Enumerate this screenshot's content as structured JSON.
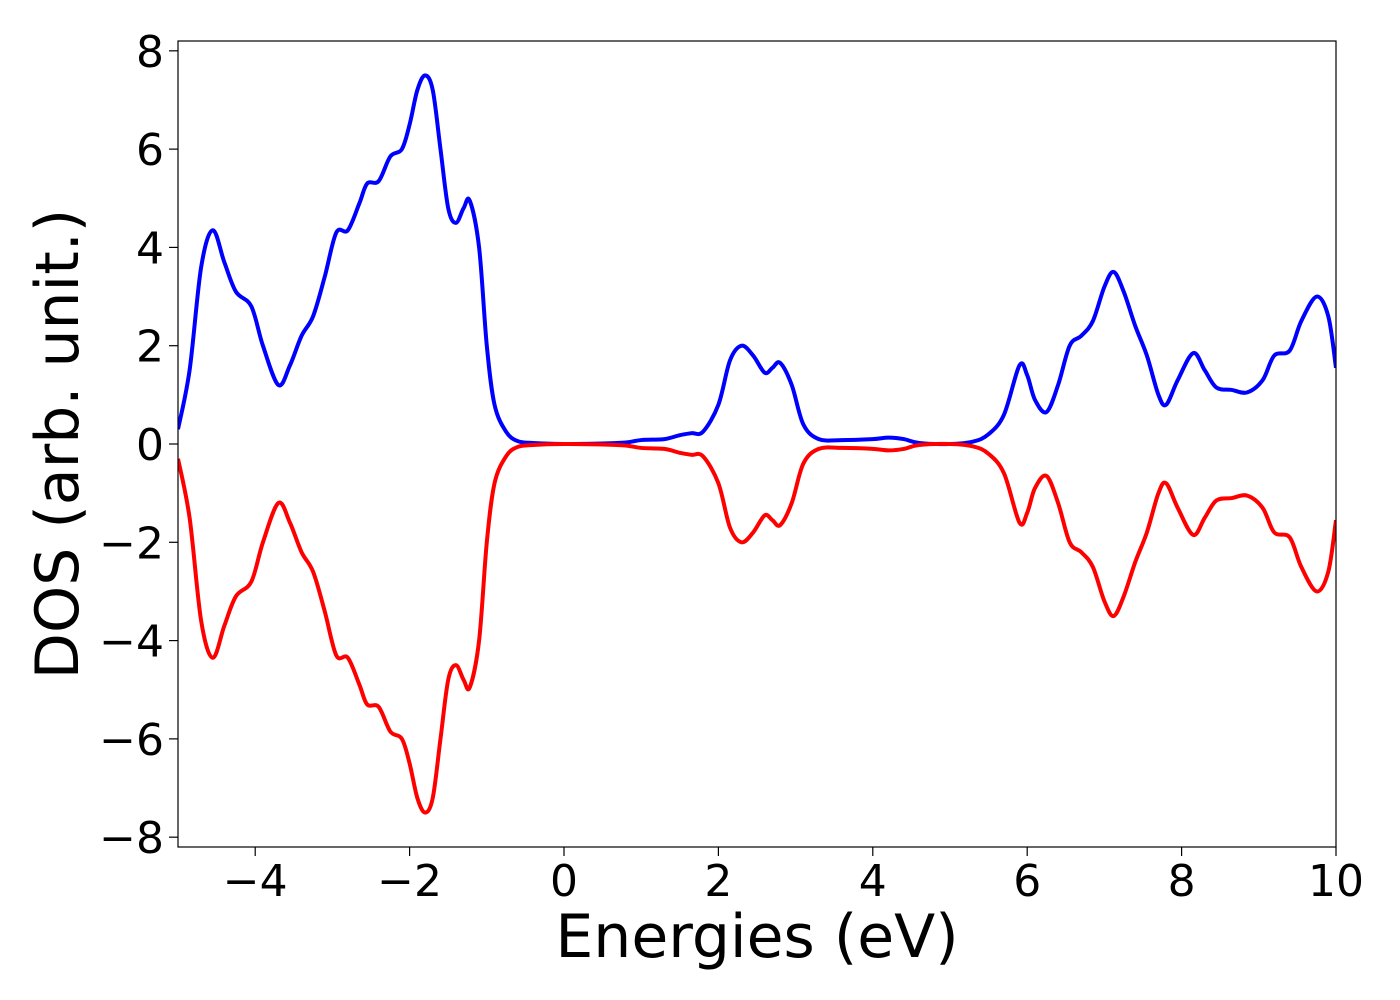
{
  "chart_data": {
    "type": "line",
    "title": "",
    "xlabel": "Energies (eV)",
    "ylabel": "DOS (arb. unit.)",
    "xlim": [
      -5,
      10
    ],
    "ylim": [
      -8.2,
      8.2
    ],
    "xticks": [
      -4,
      -2,
      0,
      2,
      4,
      6,
      8,
      10
    ],
    "xtick_labels": [
      "−4",
      "−2",
      "0",
      "2",
      "4",
      "6",
      "8",
      "10"
    ],
    "yticks": [
      -8,
      -6,
      -4,
      -2,
      0,
      2,
      4,
      6,
      8
    ],
    "ytick_labels": [
      "−8",
      "−6",
      "−4",
      "−2",
      "0",
      "2",
      "4",
      "6",
      "8"
    ],
    "grid": false,
    "legend": "none",
    "series": [
      {
        "color": "#0000ff",
        "points": [
          [
            -5.0,
            0.3
          ],
          [
            -4.85,
            1.5
          ],
          [
            -4.7,
            3.6
          ],
          [
            -4.55,
            4.35
          ],
          [
            -4.4,
            3.7
          ],
          [
            -4.25,
            3.1
          ],
          [
            -4.05,
            2.8
          ],
          [
            -3.9,
            2.0
          ],
          [
            -3.7,
            1.2
          ],
          [
            -3.55,
            1.6
          ],
          [
            -3.4,
            2.2
          ],
          [
            -3.25,
            2.6
          ],
          [
            -3.1,
            3.4
          ],
          [
            -2.95,
            4.3
          ],
          [
            -2.8,
            4.35
          ],
          [
            -2.65,
            4.9
          ],
          [
            -2.55,
            5.3
          ],
          [
            -2.4,
            5.35
          ],
          [
            -2.25,
            5.85
          ],
          [
            -2.1,
            6.0
          ],
          [
            -2.0,
            6.5
          ],
          [
            -1.9,
            7.2
          ],
          [
            -1.8,
            7.5
          ],
          [
            -1.7,
            7.2
          ],
          [
            -1.6,
            6.0
          ],
          [
            -1.5,
            4.8
          ],
          [
            -1.4,
            4.5
          ],
          [
            -1.3,
            4.8
          ],
          [
            -1.22,
            4.95
          ],
          [
            -1.1,
            4.0
          ],
          [
            -1.0,
            2.0
          ],
          [
            -0.9,
            0.8
          ],
          [
            -0.75,
            0.25
          ],
          [
            -0.6,
            0.06
          ],
          [
            -0.4,
            0.02
          ],
          [
            0.0,
            0.0
          ],
          [
            0.5,
            0.01
          ],
          [
            0.8,
            0.03
          ],
          [
            1.0,
            0.08
          ],
          [
            1.3,
            0.1
          ],
          [
            1.5,
            0.18
          ],
          [
            1.65,
            0.22
          ],
          [
            1.8,
            0.25
          ],
          [
            2.0,
            0.8
          ],
          [
            2.15,
            1.7
          ],
          [
            2.3,
            2.0
          ],
          [
            2.45,
            1.8
          ],
          [
            2.6,
            1.45
          ],
          [
            2.7,
            1.55
          ],
          [
            2.8,
            1.65
          ],
          [
            2.95,
            1.2
          ],
          [
            3.1,
            0.4
          ],
          [
            3.3,
            0.1
          ],
          [
            3.6,
            0.08
          ],
          [
            4.0,
            0.1
          ],
          [
            4.2,
            0.13
          ],
          [
            4.4,
            0.1
          ],
          [
            4.6,
            0.02
          ],
          [
            5.0,
            0.0
          ],
          [
            5.3,
            0.05
          ],
          [
            5.5,
            0.2
          ],
          [
            5.7,
            0.6
          ],
          [
            5.9,
            1.6
          ],
          [
            6.0,
            1.4
          ],
          [
            6.1,
            0.9
          ],
          [
            6.25,
            0.65
          ],
          [
            6.4,
            1.2
          ],
          [
            6.55,
            2.0
          ],
          [
            6.7,
            2.2
          ],
          [
            6.85,
            2.5
          ],
          [
            7.0,
            3.2
          ],
          [
            7.12,
            3.5
          ],
          [
            7.25,
            3.1
          ],
          [
            7.4,
            2.4
          ],
          [
            7.55,
            1.8
          ],
          [
            7.7,
            1.0
          ],
          [
            7.8,
            0.8
          ],
          [
            7.95,
            1.3
          ],
          [
            8.15,
            1.85
          ],
          [
            8.3,
            1.5
          ],
          [
            8.45,
            1.15
          ],
          [
            8.65,
            1.1
          ],
          [
            8.85,
            1.05
          ],
          [
            9.05,
            1.3
          ],
          [
            9.2,
            1.8
          ],
          [
            9.4,
            1.9
          ],
          [
            9.55,
            2.5
          ],
          [
            9.75,
            3.0
          ],
          [
            9.9,
            2.6
          ],
          [
            10.0,
            1.55
          ]
        ]
      },
      {
        "color": "#ff0000",
        "points": [
          [
            -5.0,
            -0.3
          ],
          [
            -4.85,
            -1.5
          ],
          [
            -4.7,
            -3.6
          ],
          [
            -4.55,
            -4.35
          ],
          [
            -4.4,
            -3.7
          ],
          [
            -4.25,
            -3.1
          ],
          [
            -4.05,
            -2.8
          ],
          [
            -3.9,
            -2.0
          ],
          [
            -3.7,
            -1.2
          ],
          [
            -3.55,
            -1.6
          ],
          [
            -3.4,
            -2.2
          ],
          [
            -3.25,
            -2.6
          ],
          [
            -3.1,
            -3.4
          ],
          [
            -2.95,
            -4.3
          ],
          [
            -2.8,
            -4.35
          ],
          [
            -2.65,
            -4.9
          ],
          [
            -2.55,
            -5.3
          ],
          [
            -2.4,
            -5.35
          ],
          [
            -2.25,
            -5.85
          ],
          [
            -2.1,
            -6.0
          ],
          [
            -2.0,
            -6.5
          ],
          [
            -1.9,
            -7.2
          ],
          [
            -1.8,
            -7.5
          ],
          [
            -1.7,
            -7.2
          ],
          [
            -1.6,
            -6.0
          ],
          [
            -1.5,
            -4.8
          ],
          [
            -1.4,
            -4.5
          ],
          [
            -1.3,
            -4.8
          ],
          [
            -1.22,
            -4.95
          ],
          [
            -1.1,
            -4.0
          ],
          [
            -1.0,
            -2.0
          ],
          [
            -0.9,
            -0.8
          ],
          [
            -0.75,
            -0.25
          ],
          [
            -0.6,
            -0.06
          ],
          [
            -0.4,
            -0.02
          ],
          [
            0.0,
            0.0
          ],
          [
            0.5,
            -0.01
          ],
          [
            0.8,
            -0.03
          ],
          [
            1.0,
            -0.08
          ],
          [
            1.3,
            -0.1
          ],
          [
            1.5,
            -0.18
          ],
          [
            1.65,
            -0.22
          ],
          [
            1.8,
            -0.25
          ],
          [
            2.0,
            -0.8
          ],
          [
            2.15,
            -1.7
          ],
          [
            2.3,
            -2.0
          ],
          [
            2.45,
            -1.8
          ],
          [
            2.6,
            -1.45
          ],
          [
            2.7,
            -1.55
          ],
          [
            2.8,
            -1.65
          ],
          [
            2.95,
            -1.2
          ],
          [
            3.1,
            -0.4
          ],
          [
            3.3,
            -0.1
          ],
          [
            3.6,
            -0.08
          ],
          [
            4.0,
            -0.1
          ],
          [
            4.2,
            -0.13
          ],
          [
            4.4,
            -0.1
          ],
          [
            4.6,
            -0.02
          ],
          [
            5.0,
            0.0
          ],
          [
            5.3,
            -0.05
          ],
          [
            5.5,
            -0.2
          ],
          [
            5.7,
            -0.6
          ],
          [
            5.9,
            -1.6
          ],
          [
            6.0,
            -1.4
          ],
          [
            6.1,
            -0.9
          ],
          [
            6.25,
            -0.65
          ],
          [
            6.4,
            -1.2
          ],
          [
            6.55,
            -2.0
          ],
          [
            6.7,
            -2.2
          ],
          [
            6.85,
            -2.5
          ],
          [
            7.0,
            -3.2
          ],
          [
            7.12,
            -3.5
          ],
          [
            7.25,
            -3.1
          ],
          [
            7.4,
            -2.4
          ],
          [
            7.55,
            -1.8
          ],
          [
            7.7,
            -1.0
          ],
          [
            7.8,
            -0.8
          ],
          [
            7.95,
            -1.3
          ],
          [
            8.15,
            -1.85
          ],
          [
            8.3,
            -1.5
          ],
          [
            8.45,
            -1.15
          ],
          [
            8.65,
            -1.1
          ],
          [
            8.85,
            -1.05
          ],
          [
            9.05,
            -1.3
          ],
          [
            9.2,
            -1.8
          ],
          [
            9.4,
            -1.9
          ],
          [
            9.55,
            -2.5
          ],
          [
            9.75,
            -3.0
          ],
          [
            9.9,
            -2.6
          ],
          [
            10.0,
            -1.55
          ]
        ]
      }
    ]
  }
}
